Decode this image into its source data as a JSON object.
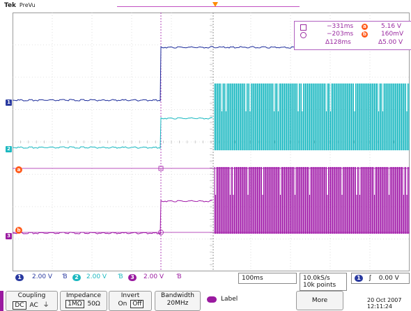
{
  "brand": {
    "name": "Tek",
    "mode": "PreVu"
  },
  "channel_markers": {
    "ch1": "1",
    "ch2": "2",
    "ch3": "3"
  },
  "cursor_markers": {
    "a": "a",
    "b": "b"
  },
  "readout": {
    "row1_time": "−331ms",
    "row1_id": "a",
    "row1_value": "5.16 V",
    "row2_time": "−203ms",
    "row2_id": "b",
    "row2_value": "160mV",
    "delta_time": "Δ128ms",
    "delta_value": "Δ5.00 V"
  },
  "status_bar": {
    "ch1_num": "1",
    "ch1_scale": "2.00 V",
    "ch1_bw": "Ɓ",
    "ch2_num": "2",
    "ch2_scale": "2.00 V",
    "ch2_bw": "Ɓ",
    "ch3_num": "3",
    "ch3_scale": "2.00 V",
    "ch3_bw": "Ɓ",
    "timebase": "100ms",
    "sample_rate": "10.0kS/s",
    "record_length": "10k points",
    "trigger_channel": "1",
    "trigger_slope": "ʃ",
    "trigger_level": "0.00 V"
  },
  "menu": {
    "coupling": {
      "title": "Coupling",
      "dc": "DC",
      "ac": "AC",
      "gnd": "⏚"
    },
    "impedance": {
      "title": "Impedance",
      "opt1": "1MΩ",
      "opt2": "50Ω"
    },
    "invert": {
      "title": "Invert",
      "on": "On",
      "off": "Off"
    },
    "bandwidth": {
      "title": "Bandwidth",
      "value": "20MHz"
    },
    "label": "Label",
    "more": "More",
    "date": "20 Oct 2007",
    "time": "12:11:24"
  },
  "colors": {
    "ch1": "#1a2a9a",
    "ch2": "#18b8c0",
    "ch3": "#a018a8",
    "cursor": "#ff5a1a"
  }
}
